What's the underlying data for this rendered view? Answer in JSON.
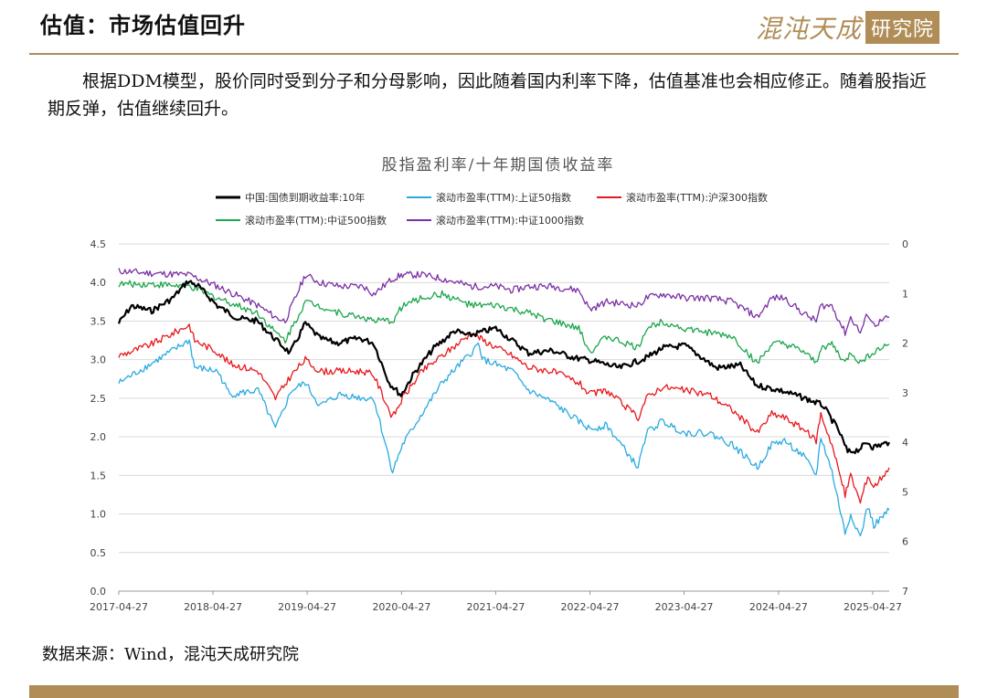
{
  "header": {
    "title": "估值：市场估值回升",
    "logo_text": "混沌天成研究院"
  },
  "body_text": "根据DDM模型，股价同时受到分子和分母影响，因此随着国内利率下降，估值基准也会相应修正。随着股指近期反弹，估值继续回升。",
  "source_text": "数据来源：Wind，混沌天成研究院",
  "colors": {
    "accent": "#b08d57",
    "bond": "#000000",
    "sz50": "#29aae1",
    "hs300": "#e8171d",
    "zz500": "#1aa64b",
    "zz1000": "#7b2fa4"
  },
  "chart_data": {
    "type": "line",
    "title": "股指盈利率/十年期国债收益率",
    "x_ticks": [
      "2017-04-27",
      "2018-04-27",
      "2019-04-27",
      "2020-04-27",
      "2021-04-27",
      "2022-04-27",
      "2023-04-27",
      "2024-04-27",
      "2025-04-27"
    ],
    "x_range": [
      "2017-04-27",
      "2025-06-30"
    ],
    "y_left": {
      "min": 0,
      "max": 4.5,
      "ticks": [
        "0.0",
        "0.5",
        "1.0",
        "1.5",
        "2.0",
        "2.5",
        "3.0",
        "3.5",
        "4.0",
        "4.5"
      ]
    },
    "y_right": {
      "min": 0,
      "max": 7,
      "inverted": true,
      "ticks": [
        "0",
        "1",
        "2",
        "3",
        "4",
        "5",
        "6",
        "7"
      ]
    },
    "grid": true,
    "legend_position": "top",
    "series": [
      {
        "name": "中国:国债到期收益率:10年",
        "axis": "right",
        "color": "#000000",
        "points": [
          [
            "2017-04-27",
            1.6
          ],
          [
            "2017-06-15",
            1.25
          ],
          [
            "2017-09-01",
            1.35
          ],
          [
            "2017-11-20",
            1.1
          ],
          [
            "2018-01-20",
            0.75
          ],
          [
            "2018-03-01",
            0.85
          ],
          [
            "2018-05-15",
            1.25
          ],
          [
            "2018-08-01",
            1.5
          ],
          [
            "2018-10-15",
            1.55
          ],
          [
            "2018-12-20",
            1.9
          ],
          [
            "2019-02-20",
            2.2
          ],
          [
            "2019-04-20",
            1.6
          ],
          [
            "2019-06-15",
            1.9
          ],
          [
            "2019-08-20",
            2.0
          ],
          [
            "2019-11-15",
            1.9
          ],
          [
            "2020-01-10",
            2.0
          ],
          [
            "2020-03-10",
            2.8
          ],
          [
            "2020-04-25",
            3.05
          ],
          [
            "2020-06-15",
            2.6
          ],
          [
            "2020-08-30",
            2.1
          ],
          [
            "2020-11-20",
            1.75
          ],
          [
            "2021-01-10",
            1.85
          ],
          [
            "2021-04-27",
            1.7
          ],
          [
            "2021-07-01",
            1.95
          ],
          [
            "2021-09-01",
            2.2
          ],
          [
            "2021-12-01",
            2.15
          ],
          [
            "2022-03-01",
            2.3
          ],
          [
            "2022-05-01",
            2.35
          ],
          [
            "2022-08-20",
            2.5
          ],
          [
            "2022-11-30",
            2.3
          ],
          [
            "2023-02-01",
            2.1
          ],
          [
            "2023-05-01",
            2.05
          ],
          [
            "2023-08-30",
            2.5
          ],
          [
            "2023-12-01",
            2.45
          ],
          [
            "2024-02-01",
            2.85
          ],
          [
            "2024-05-01",
            2.95
          ],
          [
            "2024-08-01",
            3.1
          ],
          [
            "2024-10-15",
            3.25
          ],
          [
            "2024-12-15",
            3.75
          ],
          [
            "2025-01-20",
            4.2
          ],
          [
            "2025-03-01",
            4.15
          ],
          [
            "2025-04-10",
            4.0
          ],
          [
            "2025-04-27",
            4.1
          ],
          [
            "2025-06-30",
            4.0
          ]
        ]
      },
      {
        "name": "滚动市盈率(TTM):上证50指数",
        "axis": "left",
        "color": "#29aae1",
        "points": [
          [
            "2017-04-27",
            2.7
          ],
          [
            "2017-09-01",
            2.95
          ],
          [
            "2018-01-25",
            3.25
          ],
          [
            "2018-02-15",
            2.9
          ],
          [
            "2018-05-15",
            2.85
          ],
          [
            "2018-07-01",
            2.55
          ],
          [
            "2018-10-20",
            2.6
          ],
          [
            "2018-12-25",
            2.1
          ],
          [
            "2019-02-25",
            2.6
          ],
          [
            "2019-04-20",
            2.7
          ],
          [
            "2019-06-15",
            2.4
          ],
          [
            "2019-09-01",
            2.55
          ],
          [
            "2019-12-01",
            2.5
          ],
          [
            "2020-01-10",
            2.5
          ],
          [
            "2020-03-23",
            1.55
          ],
          [
            "2020-05-01",
            1.9
          ],
          [
            "2020-07-15",
            2.3
          ],
          [
            "2020-10-01",
            2.7
          ],
          [
            "2021-01-25",
            3.1
          ],
          [
            "2021-02-18",
            3.2
          ],
          [
            "2021-03-10",
            3.0
          ],
          [
            "2021-07-01",
            2.85
          ],
          [
            "2021-09-01",
            2.6
          ],
          [
            "2021-12-01",
            2.45
          ],
          [
            "2022-03-15",
            2.2
          ],
          [
            "2022-04-27",
            2.1
          ],
          [
            "2022-07-01",
            2.15
          ],
          [
            "2022-10-31",
            1.6
          ],
          [
            "2022-12-01",
            2.05
          ],
          [
            "2023-02-01",
            2.2
          ],
          [
            "2023-05-01",
            2.05
          ],
          [
            "2023-08-01",
            2.05
          ],
          [
            "2023-10-30",
            1.9
          ],
          [
            "2024-02-05",
            1.6
          ],
          [
            "2024-04-01",
            1.9
          ],
          [
            "2024-05-20",
            1.95
          ],
          [
            "2024-08-01",
            1.75
          ],
          [
            "2024-09-20",
            1.5
          ],
          [
            "2024-10-08",
            2.0
          ],
          [
            "2024-11-20",
            1.55
          ],
          [
            "2025-01-10",
            0.75
          ],
          [
            "2025-02-01",
            1.0
          ],
          [
            "2025-03-10",
            0.7
          ],
          [
            "2025-04-08",
            1.1
          ],
          [
            "2025-05-01",
            0.85
          ],
          [
            "2025-06-30",
            1.05
          ]
        ]
      },
      {
        "name": "滚动市盈率(TTM):沪深300指数",
        "axis": "left",
        "color": "#e8171d",
        "points": [
          [
            "2017-04-27",
            3.05
          ],
          [
            "2017-09-01",
            3.2
          ],
          [
            "2018-01-25",
            3.45
          ],
          [
            "2018-02-15",
            3.25
          ],
          [
            "2018-05-15",
            3.1
          ],
          [
            "2018-07-01",
            2.95
          ],
          [
            "2018-10-20",
            2.85
          ],
          [
            "2018-12-25",
            2.5
          ],
          [
            "2019-02-25",
            2.8
          ],
          [
            "2019-04-20",
            3.0
          ],
          [
            "2019-06-15",
            2.85
          ],
          [
            "2019-09-01",
            2.85
          ],
          [
            "2019-12-01",
            2.85
          ],
          [
            "2020-01-10",
            2.8
          ],
          [
            "2020-03-23",
            2.25
          ],
          [
            "2020-05-01",
            2.5
          ],
          [
            "2020-07-15",
            2.85
          ],
          [
            "2020-10-01",
            3.05
          ],
          [
            "2021-01-25",
            3.35
          ],
          [
            "2021-02-18",
            3.3
          ],
          [
            "2021-03-10",
            3.25
          ],
          [
            "2021-07-01",
            3.05
          ],
          [
            "2021-09-01",
            2.9
          ],
          [
            "2021-12-01",
            2.85
          ],
          [
            "2022-03-15",
            2.7
          ],
          [
            "2022-04-27",
            2.55
          ],
          [
            "2022-07-01",
            2.6
          ],
          [
            "2022-10-31",
            2.25
          ],
          [
            "2022-12-01",
            2.5
          ],
          [
            "2023-02-01",
            2.65
          ],
          [
            "2023-05-01",
            2.6
          ],
          [
            "2023-08-01",
            2.55
          ],
          [
            "2023-10-30",
            2.35
          ],
          [
            "2024-02-05",
            2.05
          ],
          [
            "2024-04-01",
            2.3
          ],
          [
            "2024-05-20",
            2.25
          ],
          [
            "2024-08-01",
            2.1
          ],
          [
            "2024-09-20",
            1.95
          ],
          [
            "2024-10-08",
            2.3
          ],
          [
            "2024-11-20",
            1.9
          ],
          [
            "2025-01-10",
            1.25
          ],
          [
            "2025-02-01",
            1.5
          ],
          [
            "2025-03-10",
            1.15
          ],
          [
            "2025-04-08",
            1.5
          ],
          [
            "2025-05-01",
            1.35
          ],
          [
            "2025-06-30",
            1.6
          ]
        ]
      },
      {
        "name": "滚动市盈率(TTM):中证500指数",
        "axis": "left",
        "color": "#1aa64b",
        "points": [
          [
            "2017-04-27",
            3.98
          ],
          [
            "2017-09-01",
            3.98
          ],
          [
            "2018-01-25",
            3.95
          ],
          [
            "2018-05-15",
            3.8
          ],
          [
            "2018-10-20",
            3.6
          ],
          [
            "2018-12-25",
            3.35
          ],
          [
            "2019-02-01",
            3.25
          ],
          [
            "2019-04-20",
            3.75
          ],
          [
            "2019-06-15",
            3.7
          ],
          [
            "2019-09-01",
            3.6
          ],
          [
            "2019-12-01",
            3.55
          ],
          [
            "2020-01-10",
            3.5
          ],
          [
            "2020-03-23",
            3.5
          ],
          [
            "2020-05-01",
            3.7
          ],
          [
            "2020-07-15",
            3.8
          ],
          [
            "2020-10-01",
            3.85
          ],
          [
            "2021-01-25",
            3.7
          ],
          [
            "2021-04-27",
            3.7
          ],
          [
            "2021-07-01",
            3.65
          ],
          [
            "2021-09-01",
            3.6
          ],
          [
            "2021-12-01",
            3.5
          ],
          [
            "2022-03-15",
            3.4
          ],
          [
            "2022-04-27",
            3.1
          ],
          [
            "2022-07-01",
            3.3
          ],
          [
            "2022-10-31",
            3.15
          ],
          [
            "2022-12-01",
            3.4
          ],
          [
            "2023-02-01",
            3.5
          ],
          [
            "2023-05-01",
            3.4
          ],
          [
            "2023-08-01",
            3.35
          ],
          [
            "2023-10-30",
            3.3
          ],
          [
            "2024-02-05",
            2.95
          ],
          [
            "2024-04-01",
            3.2
          ],
          [
            "2024-05-20",
            3.2
          ],
          [
            "2024-08-01",
            3.1
          ],
          [
            "2024-09-20",
            2.95
          ],
          [
            "2024-10-08",
            3.15
          ],
          [
            "2024-11-20",
            3.2
          ],
          [
            "2025-01-10",
            2.95
          ],
          [
            "2025-02-01",
            3.1
          ],
          [
            "2025-03-10",
            2.95
          ],
          [
            "2025-04-08",
            3.05
          ],
          [
            "2025-05-01",
            3.1
          ],
          [
            "2025-06-30",
            3.2
          ]
        ]
      },
      {
        "name": "滚动市盈率(TTM):中证1000指数",
        "axis": "left",
        "color": "#7b2fa4",
        "points": [
          [
            "2017-04-27",
            4.15
          ],
          [
            "2017-09-01",
            4.12
          ],
          [
            "2018-01-25",
            4.1
          ],
          [
            "2018-05-15",
            3.95
          ],
          [
            "2018-10-20",
            3.7
          ],
          [
            "2018-12-25",
            3.55
          ],
          [
            "2019-02-01",
            3.5
          ],
          [
            "2019-04-20",
            4.1
          ],
          [
            "2019-06-15",
            4.0
          ],
          [
            "2019-09-01",
            3.95
          ],
          [
            "2019-12-01",
            3.95
          ],
          [
            "2020-01-10",
            3.85
          ],
          [
            "2020-03-23",
            4.05
          ],
          [
            "2020-05-01",
            4.1
          ],
          [
            "2020-07-15",
            4.1
          ],
          [
            "2020-10-01",
            4.05
          ],
          [
            "2021-01-25",
            3.95
          ],
          [
            "2021-04-27",
            3.95
          ],
          [
            "2021-07-01",
            3.9
          ],
          [
            "2021-09-01",
            3.95
          ],
          [
            "2021-12-01",
            3.95
          ],
          [
            "2022-03-15",
            3.9
          ],
          [
            "2022-04-27",
            3.65
          ],
          [
            "2022-07-01",
            3.75
          ],
          [
            "2022-10-31",
            3.7
          ],
          [
            "2022-12-01",
            3.8
          ],
          [
            "2023-02-01",
            3.85
          ],
          [
            "2023-05-01",
            3.8
          ],
          [
            "2023-08-01",
            3.8
          ],
          [
            "2023-10-30",
            3.75
          ],
          [
            "2024-02-05",
            3.55
          ],
          [
            "2024-04-01",
            3.8
          ],
          [
            "2024-05-20",
            3.8
          ],
          [
            "2024-08-01",
            3.6
          ],
          [
            "2024-09-20",
            3.5
          ],
          [
            "2024-10-08",
            3.7
          ],
          [
            "2024-11-20",
            3.7
          ],
          [
            "2025-01-10",
            3.35
          ],
          [
            "2025-02-01",
            3.55
          ],
          [
            "2025-03-10",
            3.35
          ],
          [
            "2025-04-08",
            3.6
          ],
          [
            "2025-05-01",
            3.45
          ],
          [
            "2025-06-30",
            3.55
          ]
        ]
      }
    ]
  }
}
